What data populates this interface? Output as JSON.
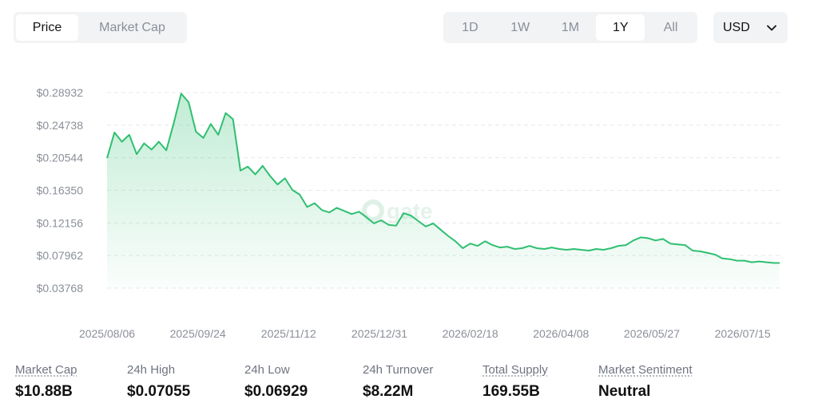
{
  "metric_tabs": [
    {
      "label": "Price",
      "active": true
    },
    {
      "label": "Market Cap",
      "active": false
    }
  ],
  "range_tabs": [
    {
      "label": "1D",
      "active": false
    },
    {
      "label": "1W",
      "active": false
    },
    {
      "label": "1M",
      "active": false
    },
    {
      "label": "1Y",
      "active": true
    },
    {
      "label": "All",
      "active": false
    }
  ],
  "currency": {
    "selected": "USD",
    "icon": "chevron-down-icon"
  },
  "watermark": {
    "text": "gate"
  },
  "colors": {
    "line": "#2fbf71",
    "accent_text": "#111111",
    "muted_text": "#8a8f98",
    "grid": "#e6e8eb"
  },
  "chart_data": {
    "type": "area",
    "y_ticks": [
      "$0.28932",
      "$0.24738",
      "$0.20544",
      "$0.16350",
      "$0.12156",
      "$0.07962",
      "$0.03768"
    ],
    "y_tick_values": [
      0.28932,
      0.24738,
      0.20544,
      0.1635,
      0.12156,
      0.07962,
      0.03768
    ],
    "x_ticks": [
      "2025/08/06",
      "2025/09/24",
      "2025/11/12",
      "2025/12/31",
      "2026/02/18",
      "2026/04/08",
      "2026/05/27",
      "2026/07/15"
    ],
    "grid": "horizontal-dashed",
    "series": [
      {
        "x": [
          "2025/08/06",
          "2025/08/10",
          "2025/08/14",
          "2025/08/18",
          "2025/08/22",
          "2025/08/26",
          "2025/08/30",
          "2025/09/03",
          "2025/09/07",
          "2025/09/11",
          "2025/09/15",
          "2025/09/19",
          "2025/09/23",
          "2025/09/27",
          "2025/10/01",
          "2025/10/05",
          "2025/10/09",
          "2025/10/13",
          "2025/10/17",
          "2025/10/21",
          "2025/10/25",
          "2025/10/29",
          "2025/11/02",
          "2025/11/06",
          "2025/11/10",
          "2025/11/14",
          "2025/11/18",
          "2025/11/22",
          "2025/11/26",
          "2025/11/30",
          "2025/12/04",
          "2025/12/08",
          "2025/12/12",
          "2025/12/16",
          "2025/12/20",
          "2025/12/24",
          "2025/12/28",
          "2026/01/01",
          "2026/01/05",
          "2026/01/09",
          "2026/01/13",
          "2026/01/17",
          "2026/01/21",
          "2026/01/25",
          "2026/01/29",
          "2026/02/02",
          "2026/02/06",
          "2026/02/10",
          "2026/02/14",
          "2026/02/18",
          "2026/02/22",
          "2026/02/26",
          "2026/03/02",
          "2026/03/06",
          "2026/03/10",
          "2026/03/14",
          "2026/03/18",
          "2026/03/22",
          "2026/03/26",
          "2026/03/30",
          "2026/04/03",
          "2026/04/07",
          "2026/04/11",
          "2026/04/15",
          "2026/04/19",
          "2026/04/23",
          "2026/04/27",
          "2026/05/01",
          "2026/05/05",
          "2026/05/09",
          "2026/05/13",
          "2026/05/17",
          "2026/05/21",
          "2026/05/25",
          "2026/05/29",
          "2026/06/02",
          "2026/06/06",
          "2026/06/10",
          "2026/06/14",
          "2026/06/18",
          "2026/06/22",
          "2026/06/26",
          "2026/06/30",
          "2026/07/04",
          "2026/07/08",
          "2026/07/12",
          "2026/07/16",
          "2026/07/20",
          "2026/07/24",
          "2026/07/28",
          "2026/08/01",
          "2026/08/04"
        ],
        "y": [
          0.2049,
          0.238,
          0.226,
          0.235,
          0.21,
          0.224,
          0.216,
          0.226,
          0.215,
          0.25,
          0.288,
          0.277,
          0.239,
          0.231,
          0.249,
          0.235,
          0.263,
          0.255,
          0.189,
          0.194,
          0.184,
          0.195,
          0.182,
          0.171,
          0.179,
          0.164,
          0.158,
          0.142,
          0.147,
          0.138,
          0.135,
          0.141,
          0.137,
          0.133,
          0.136,
          0.129,
          0.121,
          0.125,
          0.119,
          0.118,
          0.134,
          0.131,
          0.124,
          0.117,
          0.121,
          0.113,
          0.105,
          0.098,
          0.089,
          0.095,
          0.092,
          0.098,
          0.093,
          0.09,
          0.091,
          0.088,
          0.089,
          0.092,
          0.089,
          0.088,
          0.09,
          0.088,
          0.087,
          0.088,
          0.087,
          0.086,
          0.088,
          0.087,
          0.089,
          0.092,
          0.093,
          0.099,
          0.103,
          0.102,
          0.099,
          0.101,
          0.095,
          0.094,
          0.093,
          0.086,
          0.085,
          0.083,
          0.081,
          0.076,
          0.075,
          0.073,
          0.073,
          0.071,
          0.072,
          0.071,
          0.07,
          0.07
        ]
      }
    ]
  },
  "stats": [
    {
      "label": "Market Cap",
      "value": "$10.88B",
      "underlined": true
    },
    {
      "label": "24h High",
      "value": "$0.07055",
      "underlined": false
    },
    {
      "label": "24h Low",
      "value": "$0.06929",
      "underlined": false
    },
    {
      "label": "24h Turnover",
      "value": "$8.22M",
      "underlined": false
    },
    {
      "label": "Total Supply",
      "value": "169.55B",
      "underlined": true
    },
    {
      "label": "Market Sentiment",
      "value": "Neutral",
      "underlined": true
    }
  ]
}
